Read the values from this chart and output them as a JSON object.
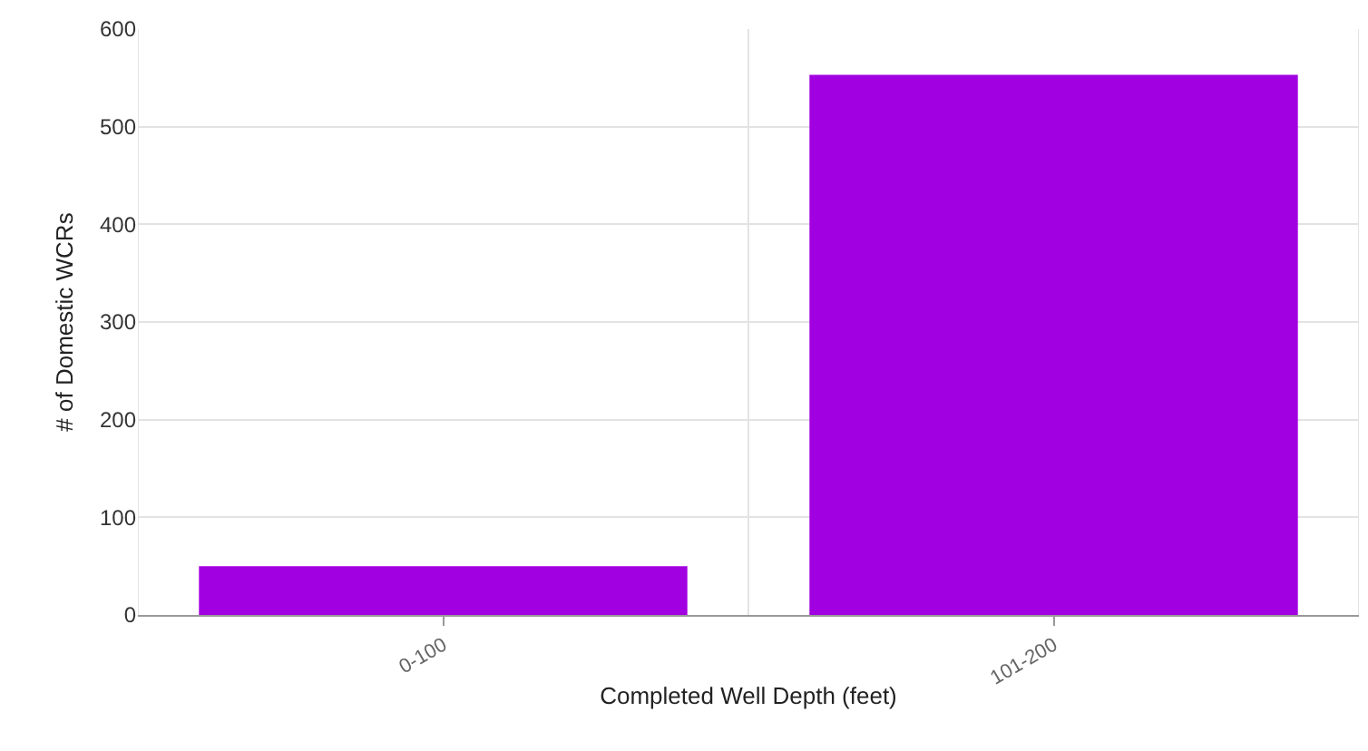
{
  "chart_data": {
    "type": "bar",
    "xlabel": "Completed Well Depth (feet)",
    "ylabel": "# of Domestic WCRs",
    "categories": [
      "0-100",
      "101-200"
    ],
    "values": [
      50,
      553
    ],
    "color": "#a100e0",
    "ylim": [
      0,
      600
    ],
    "yticks": [
      0,
      100,
      200,
      300,
      400,
      500,
      600
    ],
    "grid": true
  }
}
